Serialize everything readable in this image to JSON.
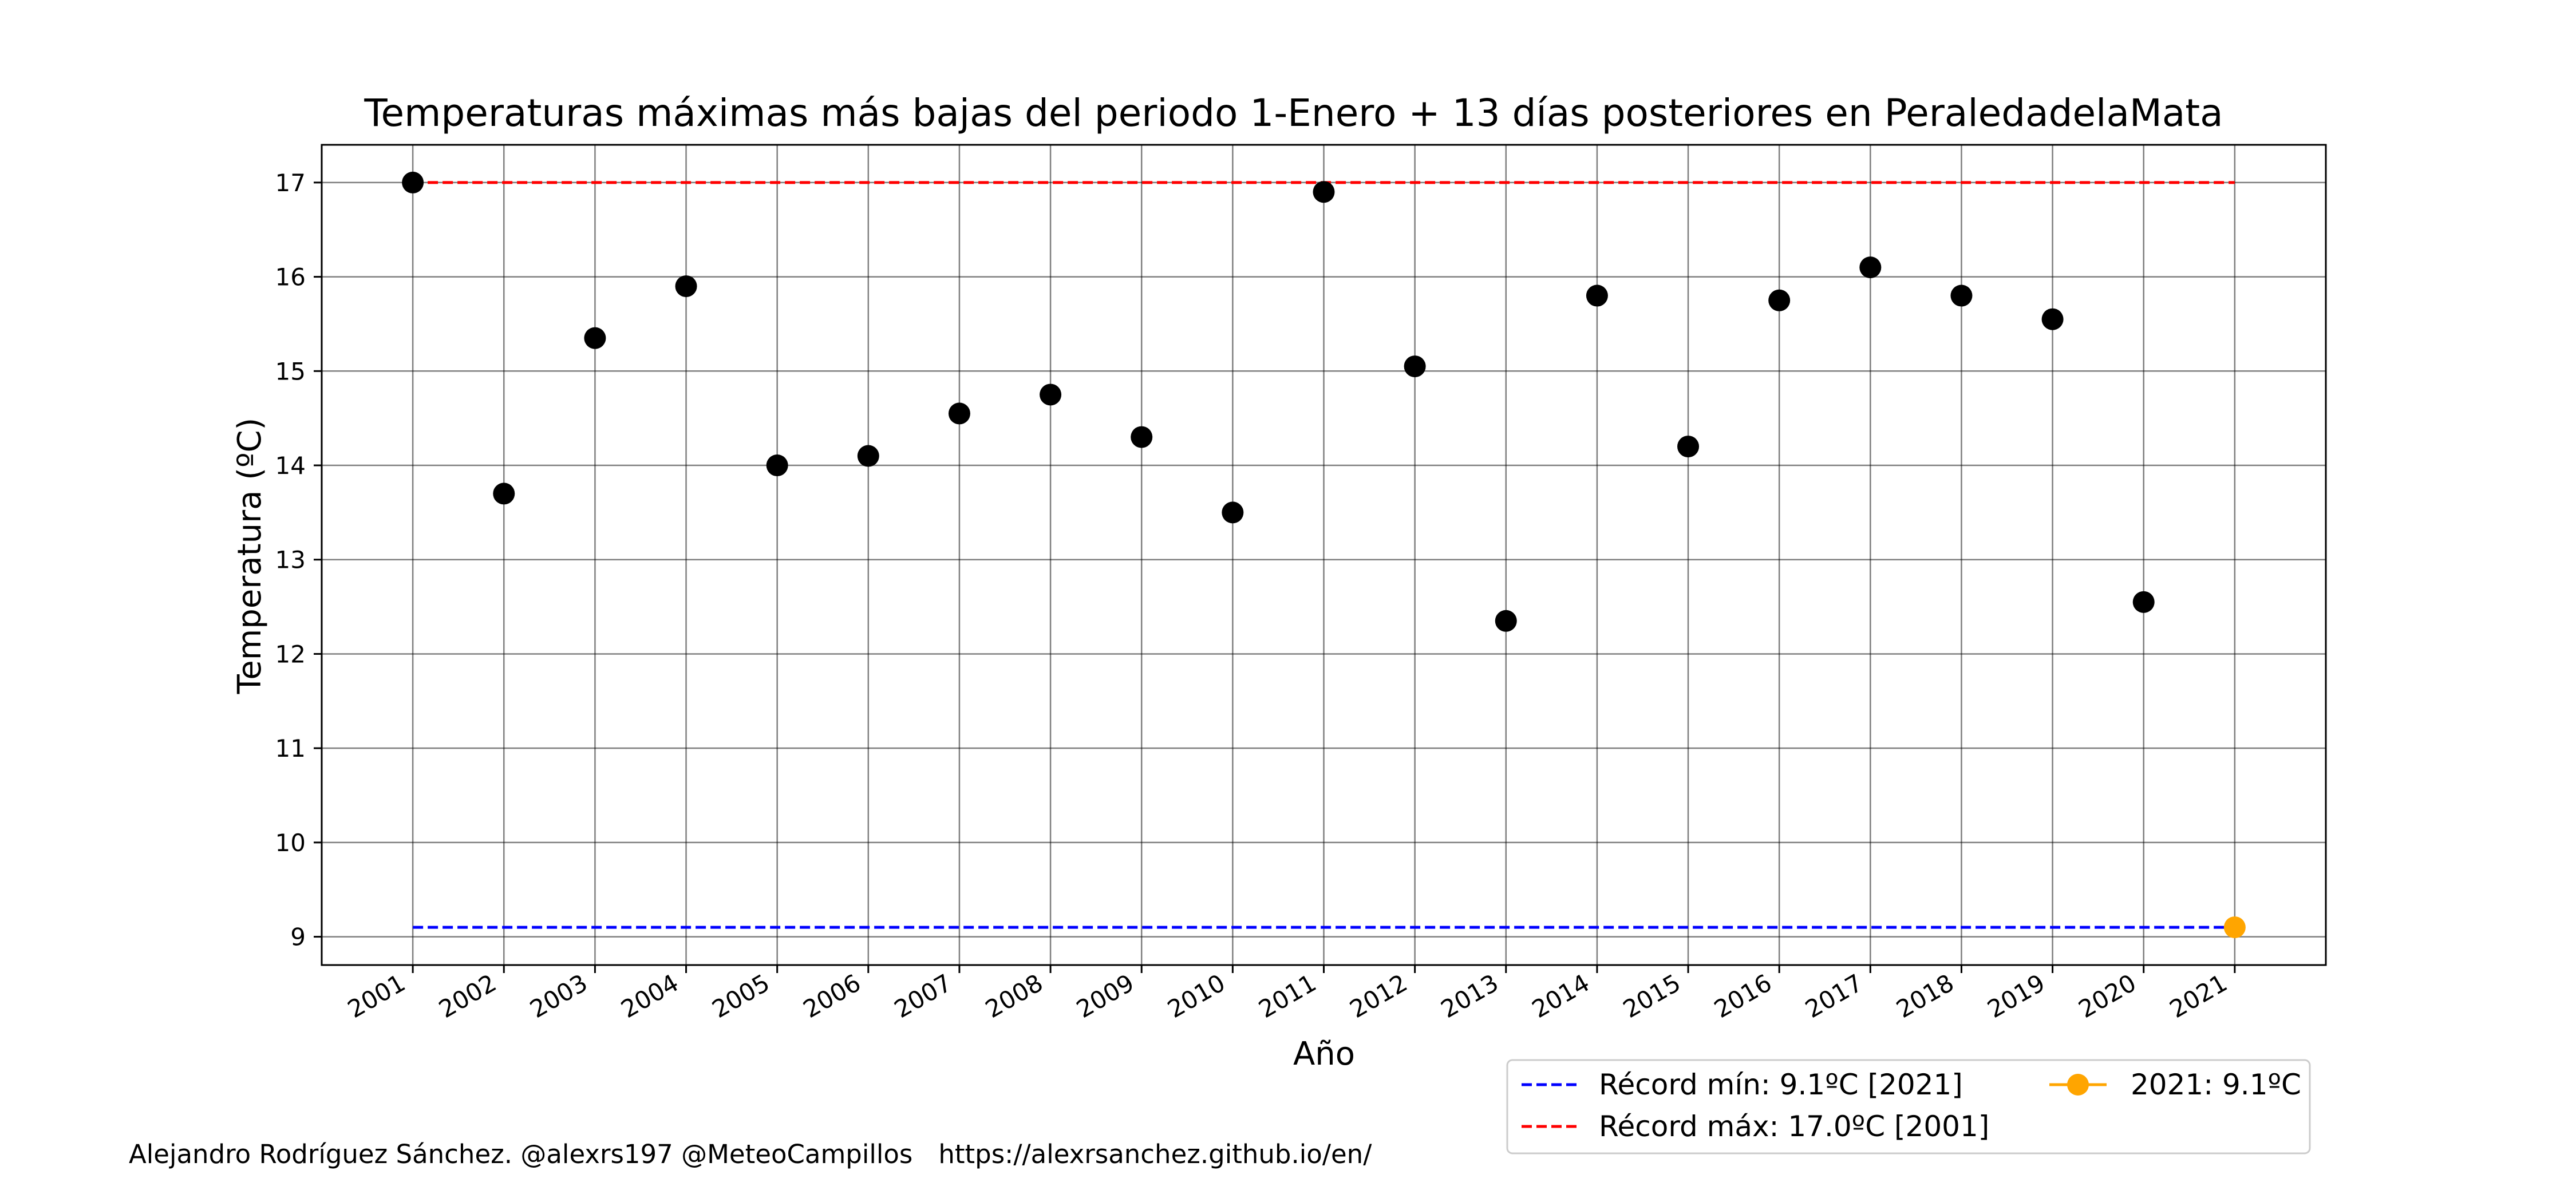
{
  "chart_data": {
    "type": "scatter",
    "title": "Temperaturas máximas más bajas del periodo 1-Enero + 13 días posteriores en PeraledadelaMata",
    "xlabel": "Año",
    "ylabel": "Temperatura (ºC)",
    "ylim": [
      8.7,
      17.4
    ],
    "xlim": [
      2000,
      2022
    ],
    "yticks": [
      "9",
      "10",
      "11",
      "12",
      "13",
      "14",
      "15",
      "16",
      "17"
    ],
    "xticks": [
      "2001",
      "2002",
      "2003",
      "2004",
      "2005",
      "2006",
      "2007",
      "2008",
      "2009",
      "2010",
      "2011",
      "2012",
      "2013",
      "2014",
      "2015",
      "2016",
      "2017",
      "2018",
      "2019",
      "2020",
      "2021"
    ],
    "grid": true,
    "series": [
      {
        "name": "Temperatura",
        "color": "#000000",
        "x": [
          2001,
          2002,
          2003,
          2004,
          2005,
          2006,
          2007,
          2008,
          2009,
          2010,
          2011,
          2012,
          2013,
          2014,
          2015,
          2016,
          2017,
          2018,
          2019,
          2020
        ],
        "values": [
          17.0,
          13.7,
          15.35,
          15.9,
          14.0,
          14.1,
          14.55,
          14.75,
          14.3,
          13.5,
          16.9,
          15.05,
          12.35,
          15.8,
          14.2,
          15.75,
          16.1,
          15.8,
          15.55,
          12.55
        ]
      },
      {
        "name": "2021: 9.1ºC",
        "color": "#ffa500",
        "x": [
          2021
        ],
        "values": [
          9.1
        ]
      }
    ],
    "reference_lines": [
      {
        "name": "Récord mín: 9.1ºC [2021]",
        "value": 9.1,
        "x_from": 2001,
        "x_to": 2021,
        "color": "#0000ff"
      },
      {
        "name": "Récord máx: 17.0ºC [2001]",
        "value": 17.0,
        "x_from": 2001,
        "x_to": 2021,
        "color": "#ff0000"
      }
    ],
    "legend": {
      "placement": "below-right",
      "entries": [
        "Récord mín: 9.1ºC [2021]",
        "Récord máx: 17.0ºC [2001]",
        "2021: 9.1ºC"
      ]
    }
  },
  "footer": {
    "author": "Alejandro Rodríguez Sánchez. @alexrs197 @MeteoCampillos",
    "url": "https://alexrsanchez.github.io/en/"
  }
}
